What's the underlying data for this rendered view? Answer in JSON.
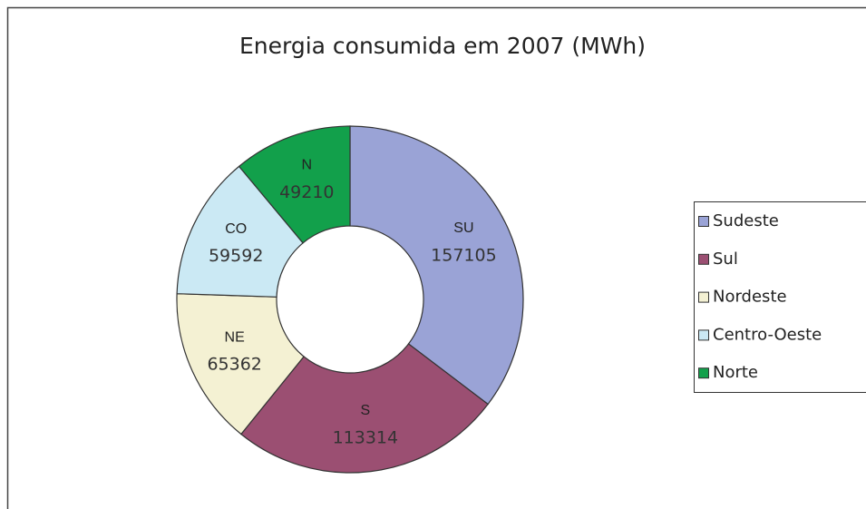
{
  "chart_data": {
    "type": "donut",
    "title": "Energia consumida em 2007 (MWh)",
    "legend": "right",
    "series": [
      {
        "name": "Sudeste",
        "label": "SU",
        "color": "#9aa3d6",
        "values": [
          157105
        ]
      },
      {
        "name": "Sul",
        "label": "S",
        "color": "#9b4f72",
        "values": [
          113314
        ]
      },
      {
        "name": "Nordeste",
        "label": "NE",
        "color": "#f4f1d3",
        "values": [
          65362
        ]
      },
      {
        "name": "Centro-Oeste",
        "label": "CO",
        "color": "#cbe9f4",
        "values": [
          59592
        ]
      },
      {
        "name": "Norte",
        "label": "N",
        "color": "#12a04b",
        "values": [
          49210
        ]
      }
    ]
  }
}
